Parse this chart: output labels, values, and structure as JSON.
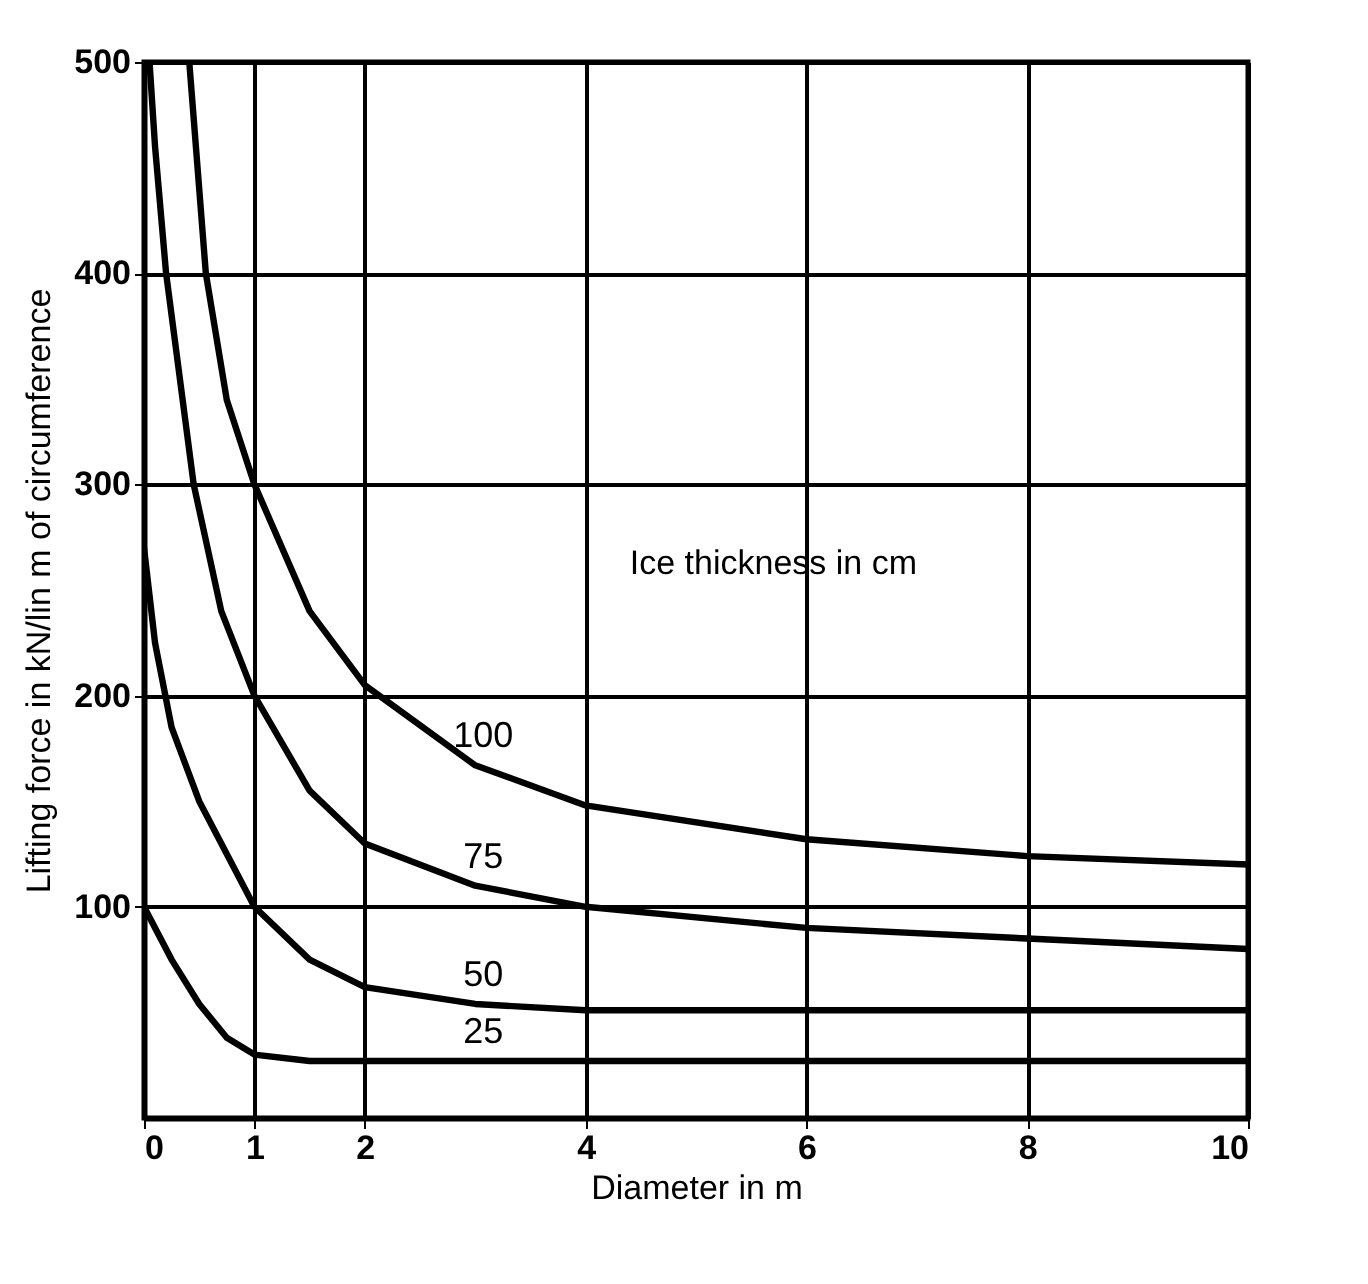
{
  "chart_data": {
    "type": "line",
    "xlabel": "Diameter in m",
    "ylabel": "Lifting force in kN/lin m of circumference",
    "xlim": [
      0,
      10
    ],
    "ylim": [
      0,
      500
    ],
    "xticks": [
      0,
      1,
      2,
      4,
      6,
      8,
      10
    ],
    "yticks": [
      100,
      200,
      300,
      400,
      500
    ],
    "grid": true,
    "legend": false,
    "marker": "none",
    "line_style": "solid",
    "annotations": [
      "Ice thickness in cm"
    ],
    "series": [
      {
        "name": "100",
        "color": "#000000",
        "x": [
          0.41,
          0.56,
          0.75,
          1,
          1.5,
          2,
          3,
          4,
          6,
          8,
          10
        ],
        "values": [
          500,
          400,
          340,
          300,
          240,
          205,
          167,
          148,
          132,
          124,
          120
        ]
      },
      {
        "name": "75",
        "color": "#000000",
        "x": [
          0.05,
          0.1,
          0.2,
          0.45,
          0.7,
          1,
          1.5,
          2,
          3,
          4,
          6,
          8,
          10
        ],
        "values": [
          500,
          460,
          400,
          300,
          240,
          200,
          155,
          130,
          110,
          100,
          90,
          85,
          80
        ]
      },
      {
        "name": "50",
        "color": "#000000",
        "x": [
          0,
          0.1,
          0.25,
          0.5,
          1,
          1.5,
          2,
          3,
          4,
          6,
          8,
          10
        ],
        "values": [
          270,
          225,
          185,
          150,
          100,
          75,
          62,
          54,
          51,
          51,
          51,
          51
        ]
      },
      {
        "name": "25",
        "color": "#000000",
        "x": [
          0,
          0.25,
          0.5,
          0.75,
          1,
          1.5,
          2,
          3,
          4,
          6,
          8,
          10
        ],
        "values": [
          100,
          75,
          54,
          38,
          30,
          27,
          27,
          27,
          27,
          27,
          27,
          27
        ]
      }
    ]
  }
}
